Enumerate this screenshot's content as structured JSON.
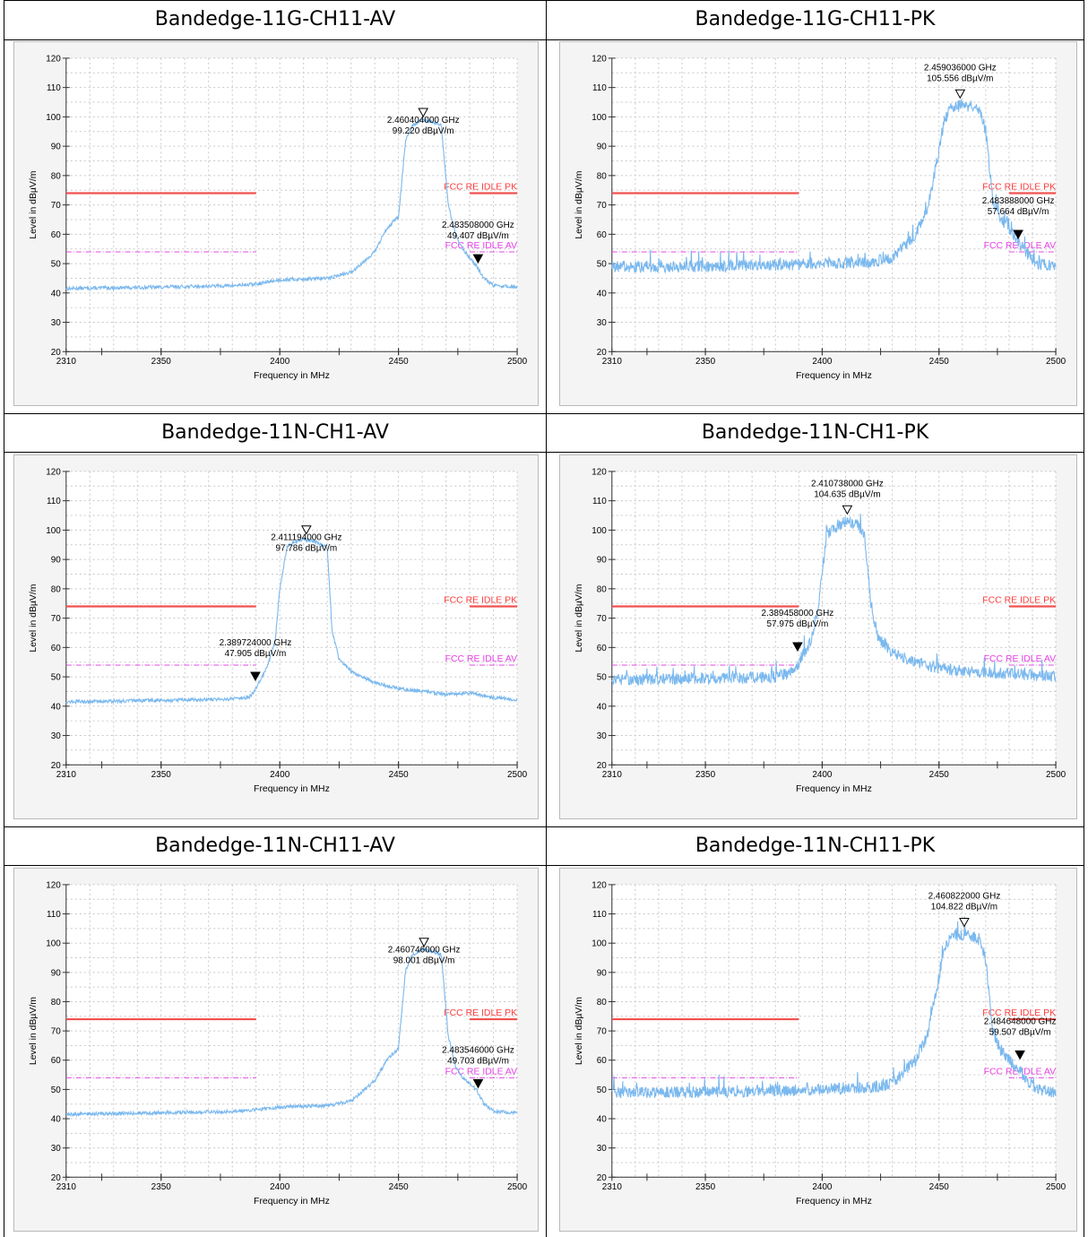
{
  "colors": {
    "trace": "#7ab8ee",
    "pk_limit": "#f0524f",
    "av_limit": "#e04be0",
    "marker": "#000000"
  },
  "chart_data": [
    {
      "type": "line",
      "title": "Bandedge-11G-CH11-AV",
      "xlabel": "Frequency in MHz",
      "ylabel": "Level in dBµV/m",
      "xlim": [
        2310,
        2500
      ],
      "ylim": [
        20,
        120
      ],
      "xticks": [
        "2310",
        "2350",
        "2400",
        "2450",
        "2500"
      ],
      "yticks": [
        "20",
        "30",
        "40",
        "50",
        "60",
        "70",
        "80",
        "90",
        "100",
        "110",
        "120"
      ],
      "grid": true,
      "noise": 0.6,
      "series": [
        {
          "x": [
            2310,
            2350,
            2380,
            2390,
            2400,
            2420,
            2430,
            2440,
            2445,
            2450,
            2453,
            2456,
            2460,
            2465,
            2468,
            2471,
            2474,
            2477,
            2480,
            2483,
            2486,
            2490,
            2500
          ],
          "y": [
            41.5,
            42,
            42.5,
            43,
            44.5,
            45,
            47,
            54,
            62,
            66,
            92,
            97,
            99,
            98,
            97,
            70,
            60,
            55,
            52,
            49,
            45,
            42.5,
            42
          ]
        }
      ],
      "limits": [
        {
          "label": "FCC RE IDLE PK",
          "y": 74,
          "x_end": 2390,
          "style": "pk"
        },
        {
          "label": "FCC RE IDLE AV",
          "y": 54,
          "x_end": 2390,
          "style": "av"
        }
      ],
      "markers": [
        {
          "freq_label": "2.460404000 GHz",
          "level_label": "99.220 dBµV/m",
          "x": 2460.404,
          "y": 99.22,
          "filled": false
        },
        {
          "freq_label": "2.483508000 GHz",
          "level_label": "49.407 dBµV/m",
          "x": 2483.508,
          "y": 49.407,
          "filled": true
        }
      ]
    },
    {
      "type": "line",
      "title": "Bandedge-11G-CH11-PK",
      "xlabel": "Frequency in MHz",
      "ylabel": "Level in dBµV/m",
      "xlim": [
        2310,
        2500
      ],
      "ylim": [
        20,
        120
      ],
      "xticks": [
        "2310",
        "2350",
        "2400",
        "2450",
        "2500"
      ],
      "yticks": [
        "20",
        "30",
        "40",
        "50",
        "60",
        "70",
        "80",
        "90",
        "100",
        "110",
        "120"
      ],
      "grid": true,
      "noise": 2.0,
      "series": [
        {
          "x": [
            2310,
            2350,
            2400,
            2420,
            2430,
            2440,
            2445,
            2448,
            2452,
            2455,
            2460,
            2465,
            2468,
            2470,
            2473,
            2476,
            2480,
            2484,
            2488,
            2492,
            2500
          ],
          "y": [
            49,
            49,
            50,
            50.5,
            52,
            60,
            68,
            80,
            98,
            103,
            104,
            103,
            101,
            95,
            72,
            66,
            62,
            57,
            53,
            50,
            49
          ]
        }
      ],
      "limits": [
        {
          "label": "FCC RE IDLE PK",
          "y": 74,
          "x_end": 2390,
          "style": "pk"
        },
        {
          "label": "FCC RE IDLE AV",
          "y": 54,
          "x_end": 2390,
          "style": "av"
        }
      ],
      "markers": [
        {
          "freq_label": "2.459036000 GHz",
          "level_label": "105.556 dBµV/m",
          "x": 2459.036,
          "y": 105.556,
          "filled": false
        },
        {
          "freq_label": "2.483888000 GHz",
          "level_label": "57.664 dBµV/m",
          "x": 2483.888,
          "y": 57.664,
          "filled": true
        }
      ]
    },
    {
      "type": "line",
      "title": "Bandedge-11N-CH1-AV",
      "xlabel": "Frequency in MHz",
      "ylabel": "Level in dBµV/m",
      "xlim": [
        2310,
        2500
      ],
      "ylim": [
        20,
        120
      ],
      "xticks": [
        "2310",
        "2350",
        "2400",
        "2450",
        "2500"
      ],
      "yticks": [
        "20",
        "30",
        "40",
        "50",
        "60",
        "70",
        "80",
        "90",
        "100",
        "110",
        "120"
      ],
      "grid": true,
      "noise": 0.6,
      "series": [
        {
          "x": [
            2310,
            2350,
            2380,
            2387,
            2390,
            2395,
            2398,
            2400,
            2403,
            2406,
            2410,
            2415,
            2420,
            2422,
            2425,
            2430,
            2440,
            2450,
            2460,
            2470,
            2480,
            2490,
            2500
          ],
          "y": [
            41.5,
            42,
            42.5,
            43,
            46,
            54,
            62,
            80,
            94,
            96,
            97,
            96,
            94,
            66,
            56,
            52,
            48,
            46,
            45,
            44,
            44.5,
            43,
            42
          ]
        }
      ],
      "limits": [
        {
          "label": "FCC RE IDLE PK",
          "y": 74,
          "x_end": 2390,
          "style": "pk"
        },
        {
          "label": "FCC RE IDLE AV",
          "y": 54,
          "x_end": 2390,
          "style": "av"
        }
      ],
      "markers": [
        {
          "freq_label": "2.411194000 GHz",
          "level_label": "97.786 dBµV/m",
          "x": 2411.194,
          "y": 97.786,
          "filled": false
        },
        {
          "freq_label": "2.389724000 GHz",
          "level_label": "47.905 dBµV/m",
          "x": 2389.724,
          "y": 47.905,
          "filled": true
        }
      ]
    },
    {
      "type": "line",
      "title": "Bandedge-11N-CH1-PK",
      "xlabel": "Frequency in MHz",
      "ylabel": "Level in dBµV/m",
      "xlim": [
        2310,
        2500
      ],
      "ylim": [
        20,
        120
      ],
      "xticks": [
        "2310",
        "2350",
        "2400",
        "2450",
        "2500"
      ],
      "yticks": [
        "20",
        "30",
        "40",
        "50",
        "60",
        "70",
        "80",
        "90",
        "100",
        "110",
        "120"
      ],
      "grid": true,
      "noise": 2.0,
      "series": [
        {
          "x": [
            2310,
            2350,
            2380,
            2385,
            2390,
            2395,
            2398,
            2400,
            2402,
            2405,
            2410,
            2415,
            2418,
            2421,
            2424,
            2430,
            2440,
            2450,
            2460,
            2470,
            2480,
            2490,
            2500
          ],
          "y": [
            49,
            49.5,
            50,
            51,
            55,
            62,
            72,
            85,
            98,
            101,
            103,
            102,
            99,
            74,
            63,
            58,
            55,
            53,
            52,
            51.5,
            51,
            50.5,
            50
          ]
        }
      ],
      "limits": [
        {
          "label": "FCC RE IDLE PK",
          "y": 74,
          "x_end": 2390,
          "style": "pk"
        },
        {
          "label": "FCC RE IDLE AV",
          "y": 54,
          "x_end": 2390,
          "style": "av"
        }
      ],
      "markers": [
        {
          "freq_label": "2.410738000 GHz",
          "level_label": "104.635 dBµV/m",
          "x": 2410.738,
          "y": 104.635,
          "filled": false
        },
        {
          "freq_label": "2.389458000 GHz",
          "level_label": "57.975 dBµV/m",
          "x": 2389.458,
          "y": 57.975,
          "filled": true
        }
      ]
    },
    {
      "type": "line",
      "title": "Bandedge-11N-CH11-AV",
      "xlabel": "Frequency in MHz",
      "ylabel": "Level in dBµV/m",
      "xlim": [
        2310,
        2500
      ],
      "ylim": [
        20,
        120
      ],
      "xticks": [
        "2310",
        "2350",
        "2400",
        "2450",
        "2500"
      ],
      "yticks": [
        "20",
        "30",
        "40",
        "50",
        "60",
        "70",
        "80",
        "90",
        "100",
        "110",
        "120"
      ],
      "grid": true,
      "noise": 0.6,
      "series": [
        {
          "x": [
            2310,
            2350,
            2380,
            2390,
            2400,
            2420,
            2430,
            2440,
            2445,
            2450,
            2453,
            2456,
            2460,
            2465,
            2468,
            2471,
            2474,
            2477,
            2480,
            2483,
            2486,
            2490,
            2500
          ],
          "y": [
            41.5,
            42,
            42.5,
            43,
            44,
            44.5,
            46,
            53,
            60,
            64,
            91,
            96,
            98,
            97,
            96,
            68,
            58,
            54,
            52,
            49.7,
            45,
            42.5,
            42
          ]
        }
      ],
      "limits": [
        {
          "label": "FCC RE IDLE PK",
          "y": 74,
          "x_end": 2390,
          "style": "pk"
        },
        {
          "label": "FCC RE IDLE AV",
          "y": 54,
          "x_end": 2390,
          "style": "av"
        }
      ],
      "markers": [
        {
          "freq_label": "2.460746000 GHz",
          "level_label": "98.001 dBµV/m",
          "x": 2460.746,
          "y": 98.001,
          "filled": false
        },
        {
          "freq_label": "2.483546000 GHz",
          "level_label": "49.703 dBµV/m",
          "x": 2483.546,
          "y": 49.703,
          "filled": true
        }
      ]
    },
    {
      "type": "line",
      "title": "Bandedge-11N-CH11-PK",
      "xlabel": "Frequency in MHz",
      "ylabel": "Level in dBµV/m",
      "xlim": [
        2310,
        2500
      ],
      "ylim": [
        20,
        120
      ],
      "xticks": [
        "2310",
        "2350",
        "2400",
        "2450",
        "2500"
      ],
      "yticks": [
        "20",
        "30",
        "40",
        "50",
        "60",
        "70",
        "80",
        "90",
        "100",
        "110",
        "120"
      ],
      "grid": true,
      "noise": 2.0,
      "series": [
        {
          "x": [
            2310,
            2350,
            2400,
            2420,
            2430,
            2440,
            2445,
            2448,
            2452,
            2455,
            2460,
            2465,
            2468,
            2470,
            2473,
            2476,
            2480,
            2484,
            2488,
            2492,
            2500
          ],
          "y": [
            49,
            49,
            50,
            50.5,
            52,
            60,
            68,
            80,
            97,
            102,
            103,
            102,
            100,
            94,
            70,
            64,
            60,
            57,
            53,
            50,
            49
          ]
        }
      ],
      "limits": [
        {
          "label": "FCC RE IDLE PK",
          "y": 74,
          "x_end": 2390,
          "style": "pk"
        },
        {
          "label": "FCC RE IDLE AV",
          "y": 54,
          "x_end": 2390,
          "style": "av"
        }
      ],
      "markers": [
        {
          "freq_label": "2.460822000 GHz",
          "level_label": "104.822 dBµV/m",
          "x": 2460.822,
          "y": 104.822,
          "filled": false
        },
        {
          "freq_label": "2.484648000 GHz",
          "level_label": "59.507 dBµV/m",
          "x": 2484.648,
          "y": 59.507,
          "filled": true
        }
      ]
    }
  ]
}
